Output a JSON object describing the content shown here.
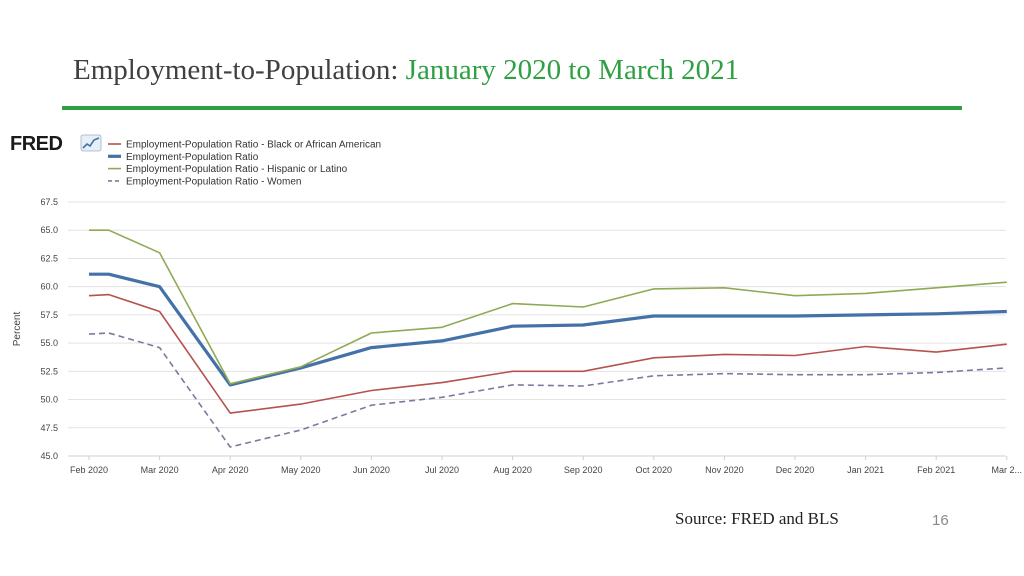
{
  "slide": {
    "title_prefix": "Employment-to-Population:",
    "title_accent": "January 2020 to March 2021",
    "source": "Source: FRED and BLS",
    "page_number": "16",
    "logo_text": "FRED",
    "accent_color": "#2ea043"
  },
  "chart_data": {
    "type": "line",
    "ylabel": "Percent",
    "ylim": [
      45.0,
      67.5
    ],
    "yticks": [
      "45.0",
      "47.5",
      "50.0",
      "52.5",
      "55.0",
      "57.5",
      "60.0",
      "62.5",
      "65.0",
      "67.5"
    ],
    "categories": [
      "Feb 2020",
      "Mar 2020",
      "Apr 2020",
      "May 2020",
      "Jun 2020",
      "Jul 2020",
      "Aug 2020",
      "Sep 2020",
      "Oct 2020",
      "Nov 2020",
      "Dec 2020",
      "Jan 2021",
      "Feb 2021",
      "Mar 2..."
    ],
    "grid": true,
    "legend_position": "top-left",
    "series": [
      {
        "name": "Employment-Population Ratio - Black or African American",
        "color": "#b5524e",
        "style": "solid",
        "x": [
          0,
          0.28,
          1,
          2,
          3,
          4,
          5,
          6,
          7,
          8,
          9,
          10,
          11,
          12,
          13
        ],
        "values": [
          59.2,
          59.3,
          57.8,
          48.8,
          49.6,
          50.8,
          51.5,
          52.5,
          52.5,
          53.7,
          54.0,
          53.9,
          54.7,
          54.2,
          54.9
        ]
      },
      {
        "name": "Employment-Population Ratio",
        "color": "#4472a8",
        "style": "bold",
        "x": [
          0,
          0.28,
          1,
          2,
          3,
          4,
          5,
          6,
          7,
          8,
          9,
          10,
          11,
          12,
          13
        ],
        "values": [
          61.1,
          61.1,
          60.0,
          51.3,
          52.8,
          54.6,
          55.2,
          56.5,
          56.6,
          57.4,
          57.4,
          57.4,
          57.5,
          57.6,
          57.8
        ]
      },
      {
        "name": "Employment-Population Ratio - Hispanic or Latino",
        "color": "#8faa55",
        "style": "solid",
        "x": [
          0,
          0.28,
          1,
          2,
          3,
          4,
          5,
          6,
          7,
          8,
          9,
          10,
          11,
          12,
          13
        ],
        "values": [
          65.0,
          65.0,
          63.0,
          51.4,
          52.9,
          55.9,
          56.4,
          58.5,
          58.2,
          59.8,
          59.9,
          59.2,
          59.4,
          59.9,
          60.4
        ]
      },
      {
        "name": "Employment-Population Ratio - Women",
        "color": "#7a7aa0",
        "style": "dashed",
        "x": [
          0,
          0.28,
          1,
          2,
          3,
          4,
          5,
          6,
          7,
          8,
          9,
          10,
          11,
          12,
          13
        ],
        "values": [
          55.8,
          55.9,
          54.6,
          45.8,
          47.3,
          49.5,
          50.2,
          51.3,
          51.2,
          52.1,
          52.3,
          52.2,
          52.2,
          52.4,
          52.8
        ]
      }
    ]
  }
}
